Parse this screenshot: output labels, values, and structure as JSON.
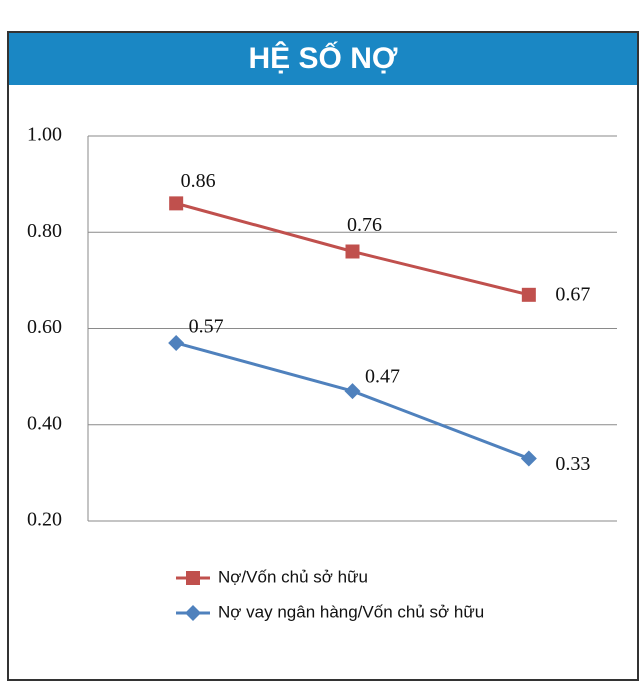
{
  "chart_data": {
    "type": "line",
    "title": "HỆ SỐ NỢ",
    "categories": [
      null,
      null,
      null
    ],
    "series": [
      {
        "name": "Nợ/Vốn chủ sở hữu",
        "color": "#c0504d",
        "marker": "square",
        "values": [
          0.86,
          0.76,
          0.67
        ]
      },
      {
        "name": "Nợ vay ngân hàng/Vốn chủ sở hữu",
        "color": "#4f81bd",
        "marker": "diamond",
        "values": [
          0.57,
          0.47,
          0.33
        ]
      }
    ],
    "ylim": [
      0.2,
      1.0
    ],
    "yticks": [
      {
        "value": 0.2,
        "label": "0.20"
      },
      {
        "value": 0.4,
        "label": "0.40"
      },
      {
        "value": 0.6,
        "label": "0.60"
      },
      {
        "value": 0.8,
        "label": "0.80"
      },
      {
        "value": 1.0,
        "label": "1.00"
      }
    ],
    "grid": true,
    "legend": "bottom"
  }
}
